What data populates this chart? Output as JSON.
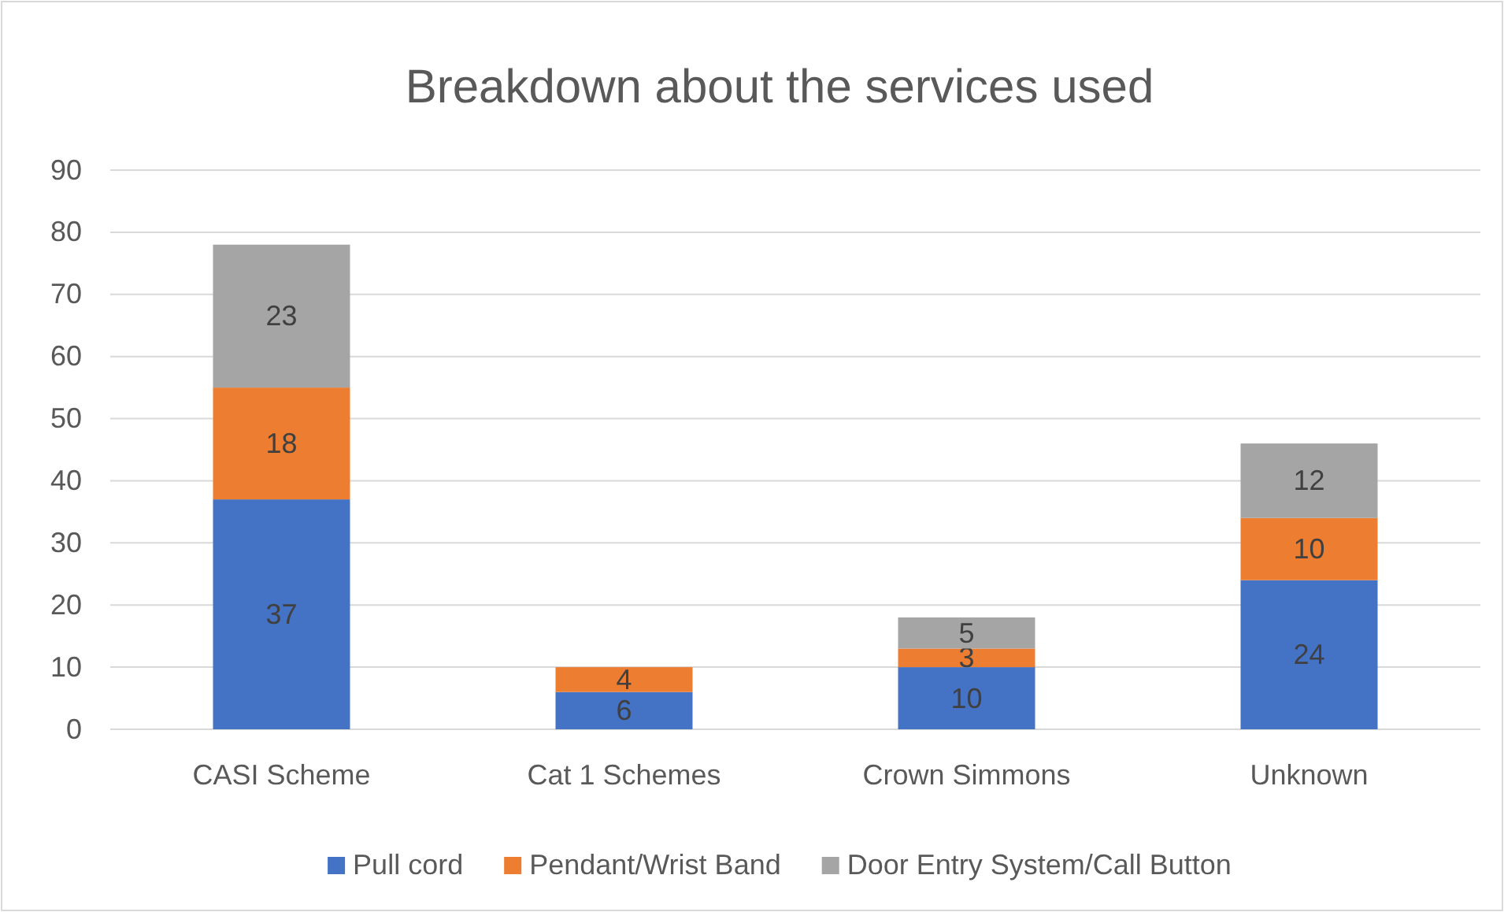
{
  "chart_data": {
    "type": "bar",
    "title": "Breakdown about the services used",
    "stacked": true,
    "categories": [
      "CASI Scheme",
      "Cat 1 Schemes",
      "Crown Simmons",
      "Unknown"
    ],
    "series": [
      {
        "name": "Pull cord",
        "color": "#4472c4",
        "values": [
          37,
          6,
          10,
          24
        ]
      },
      {
        "name": "Pendant/Wrist Band",
        "color": "#ed7d31",
        "values": [
          18,
          4,
          3,
          10
        ]
      },
      {
        "name": "Door Entry System/Call Button",
        "color": "#a5a5a5",
        "values": [
          23,
          null,
          5,
          12
        ]
      }
    ],
    "ylim": [
      0,
      90
    ],
    "yticks": [
      0,
      10,
      20,
      30,
      40,
      50,
      60,
      70,
      80,
      90
    ],
    "grid": "y",
    "legend": "bottom",
    "data_labels": true
  }
}
